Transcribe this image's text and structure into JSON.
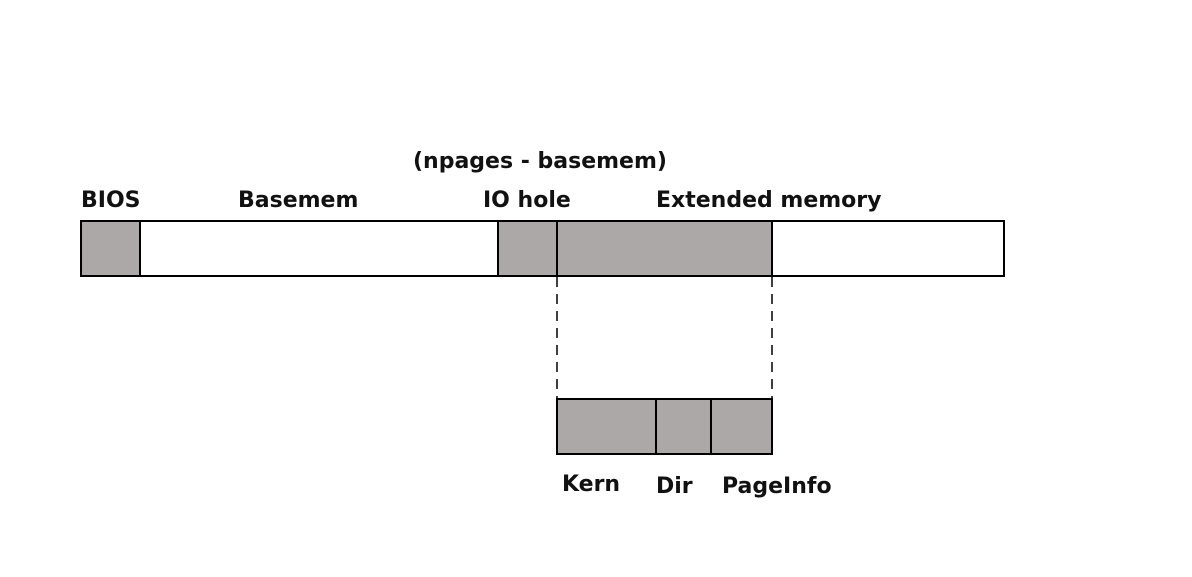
{
  "labels": {
    "extended_size": "(npages - basemem)",
    "bios": "BIOS",
    "basemem": "Basemem",
    "io_hole": "IO hole",
    "extended_memory": "Extended memory",
    "kern": "Kern",
    "dir": "Dir",
    "pageinfo": "PageInfo"
  },
  "colors": {
    "filled_region": "#aba8a7",
    "empty_region": "#ffffff",
    "outline": "#000000"
  }
}
